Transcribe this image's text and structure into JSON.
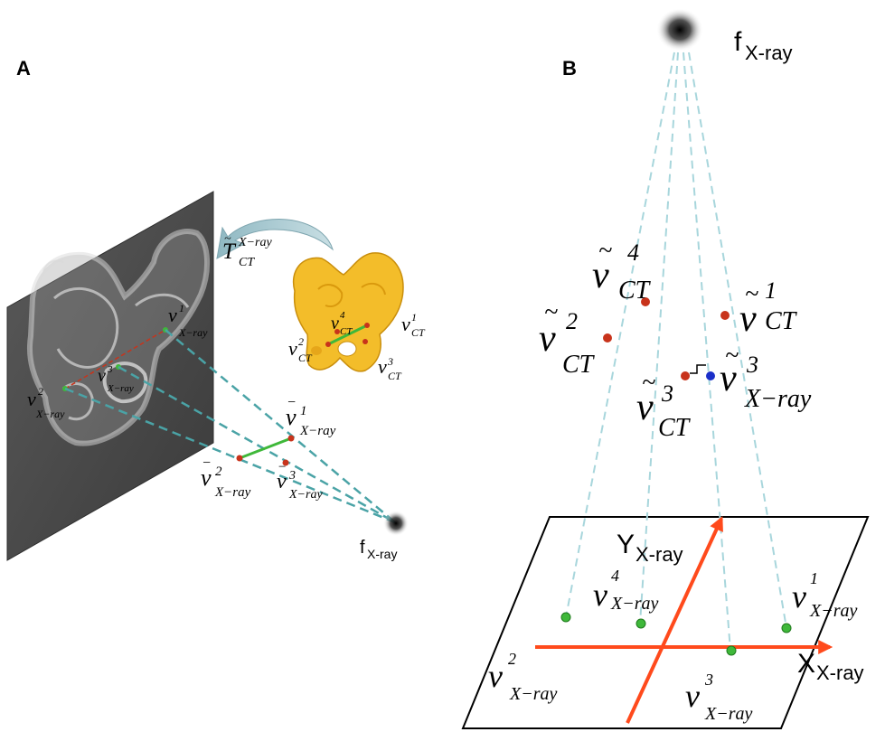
{
  "panels": {
    "a": {
      "letter": "A",
      "transform": {
        "base": "T",
        "sup": "X−ray",
        "sub": "CT"
      },
      "xray_points": [
        {
          "base": "v",
          "sup": "1",
          "sub": "X−ray"
        },
        {
          "base": "v",
          "sup": "2",
          "sub": "X−ray"
        },
        {
          "base": "v",
          "sup": "3",
          "sub": "X−ray"
        }
      ],
      "ct_points": [
        {
          "base": "v",
          "sup": "1",
          "sub": "CT"
        },
        {
          "base": "v",
          "sup": "2",
          "sub": "CT"
        },
        {
          "base": "v",
          "sup": "3",
          "sub": "CT"
        },
        {
          "base": "v",
          "sup": "4",
          "sub": "CT"
        }
      ],
      "projected_points": [
        {
          "base": "v",
          "sup": "1",
          "sub": "X−ray"
        },
        {
          "base": "v",
          "sup": "2",
          "sub": "X−ray"
        },
        {
          "base": "v",
          "sup": "3",
          "sub": "X−ray"
        }
      ],
      "focus": {
        "base": "f",
        "sub": "X-ray"
      }
    },
    "b": {
      "letter": "B",
      "focus": {
        "base": "f",
        "sub": "X-ray"
      },
      "ct_points": [
        {
          "base": "v",
          "sup": "1",
          "sub": "CT"
        },
        {
          "base": "v",
          "sup": "2",
          "sub": "CT"
        },
        {
          "base": "v",
          "sup": "3",
          "sub": "CT"
        },
        {
          "base": "v",
          "sup": "4",
          "sub": "CT"
        }
      ],
      "closest_point": {
        "base": "v",
        "sup": "3",
        "sub": "X−ray"
      },
      "axes": {
        "y": {
          "base": "Y",
          "sub": "X-ray"
        },
        "x": {
          "base": "X",
          "sub": "X-ray"
        }
      },
      "plane_points": [
        {
          "base": "v",
          "sup": "1",
          "sub": "X−ray"
        },
        {
          "base": "v",
          "sup": "2",
          "sub": "X−ray"
        },
        {
          "base": "v",
          "sup": "3",
          "sub": "X−ray"
        },
        {
          "base": "v",
          "sup": "4",
          "sub": "X−ray"
        }
      ]
    }
  },
  "colors": {
    "ray": "#4aa3a6",
    "ray_light": "#a8d6dc",
    "landmark_red": "#c8331b",
    "landmark_green": "#3fb83a",
    "landmark_blue": "#1b2fc9",
    "axis": "#ff4a1c",
    "bone": "#f3bd2a",
    "panel_grey": "#4a4a4a"
  }
}
